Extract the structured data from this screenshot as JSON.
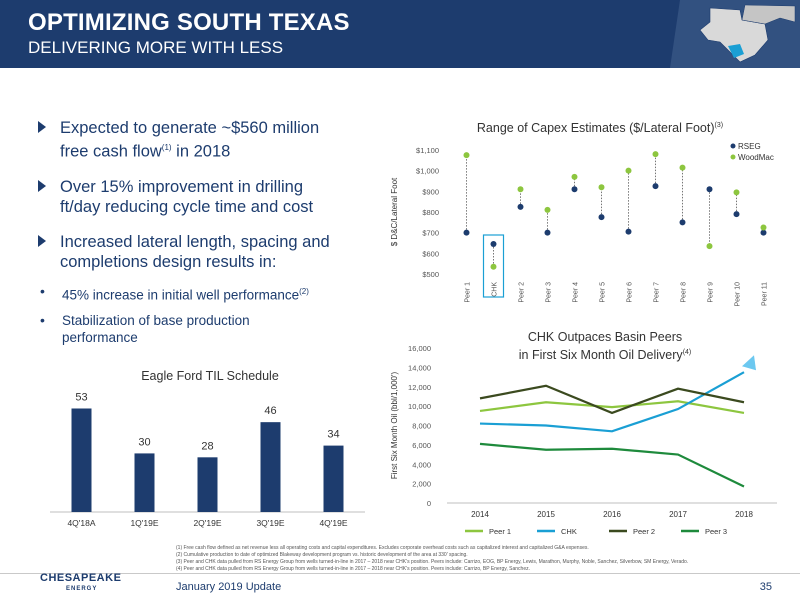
{
  "header": {
    "title": "OPTIMIZING SOUTH TEXAS",
    "subtitle": "DELIVERING MORE WITH LESS"
  },
  "bullets": [
    {
      "text": "Expected to generate ~$560 million",
      "text2": "free cash flow",
      "sup": "(1)",
      "text3": " in 2018"
    },
    {
      "text": "Over 15% improvement in drilling",
      "text2": "ft/day reducing cycle time and cost"
    },
    {
      "text": "Increased lateral length, spacing and",
      "text2": "completions design results in:"
    }
  ],
  "sub_bullets": [
    {
      "text": "45% increase in initial well performance",
      "sup": "(2)"
    },
    {
      "text": "Stabilization of base production",
      "text2": "performance"
    }
  ],
  "chart_data": [
    {
      "type": "bar",
      "title": "Eagle Ford TIL Schedule",
      "categories": [
        "4Q'18A",
        "1Q'19E",
        "2Q'19E",
        "3Q'19E",
        "4Q'19E"
      ],
      "values": [
        53,
        30,
        28,
        46,
        34
      ],
      "ylim": [
        0,
        60
      ],
      "color": "#1d3c6e"
    },
    {
      "type": "scatter",
      "title": "Range of Capex Estimates ($/Lateral Foot)",
      "title_sup": "(3)",
      "ylabel": "$ D&C/Lateral Foot",
      "categories": [
        "Peer 1",
        "CHK",
        "Peer 2",
        "Peer 3",
        "Peer 4",
        "Peer 5",
        "Peer 6",
        "Peer 7",
        "Peer 8",
        "Peer 9",
        "Peer 10",
        "Peer 11"
      ],
      "yticks": [
        "$500",
        "$600",
        "$700",
        "$800",
        "$900",
        "$1,000",
        "$1,100"
      ],
      "ylim": [
        500,
        1100
      ],
      "highlight": "CHK",
      "series": [
        {
          "name": "RSEG",
          "color": "#1d3c6e",
          "values": [
            700,
            645,
            825,
            700,
            910,
            775,
            705,
            925,
            750,
            910,
            790,
            700
          ]
        },
        {
          "name": "WoodMac",
          "color": "#8dc63f",
          "values": [
            1075,
            535,
            910,
            810,
            970,
            920,
            1000,
            1080,
            1015,
            635,
            895,
            725
          ]
        }
      ]
    },
    {
      "type": "line",
      "title": "CHK Outpaces Basin Peers",
      "title2": "in First Six Month Oil Delivery",
      "title_sup": "(4)",
      "ylabel": "First Six Month Oil (bbl/1,000')",
      "x": [
        "2014",
        "2015",
        "2016",
        "2017",
        "2018"
      ],
      "yticks": [
        "0",
        "2,000",
        "4,000",
        "6,000",
        "8,000",
        "10,000",
        "12,000",
        "14,000",
        "16,000"
      ],
      "ylim": [
        0,
        16000
      ],
      "series": [
        {
          "name": "Peer 1",
          "color": "#8dc63f",
          "values": [
            9500,
            10400,
            9900,
            10500,
            9300
          ]
        },
        {
          "name": "CHK",
          "color": "#1a9fd4",
          "values": [
            8200,
            8000,
            7400,
            9700,
            13500
          ]
        },
        {
          "name": "Peer 2",
          "color": "#3b4a1f",
          "values": [
            10800,
            12100,
            9300,
            11800,
            10400
          ]
        },
        {
          "name": "Peer 3",
          "color": "#1e8a3c",
          "values": [
            6100,
            5500,
            5600,
            5000,
            1700
          ]
        }
      ]
    }
  ],
  "footnotes": [
    "(1) Free cash flow defined as net revenue less all operating costs and capital expenditures. Excludes corporate overhead costs such as capitalized interest and capitalized G&A expenses.",
    "(2) Cumulative production to date of optimized Blakeway development program vs. historic development of the area at 330' spacing.",
    "(3) Peer and CHK data pulled from RS Energy Group from wells turned-in-line in 2017 – 2018 near CHK's position. Peers include: Carrizo, EOG, BP Energy, Lewis, Marathon, Murphy, Noble, Sanchez, Silverbow, SM Energy, Verado.",
    "(4) Peer and CHK data pulled from RS Energy Group from wells turned-in-line in 2017 – 2018 near CHK's position. Peers include: Carrizo, BP Energy, Sanchez."
  ],
  "footer": {
    "logo": "CHESAPEAKE",
    "logo_sub": "ENERGY",
    "text": "January 2019 Update",
    "page": "35"
  }
}
